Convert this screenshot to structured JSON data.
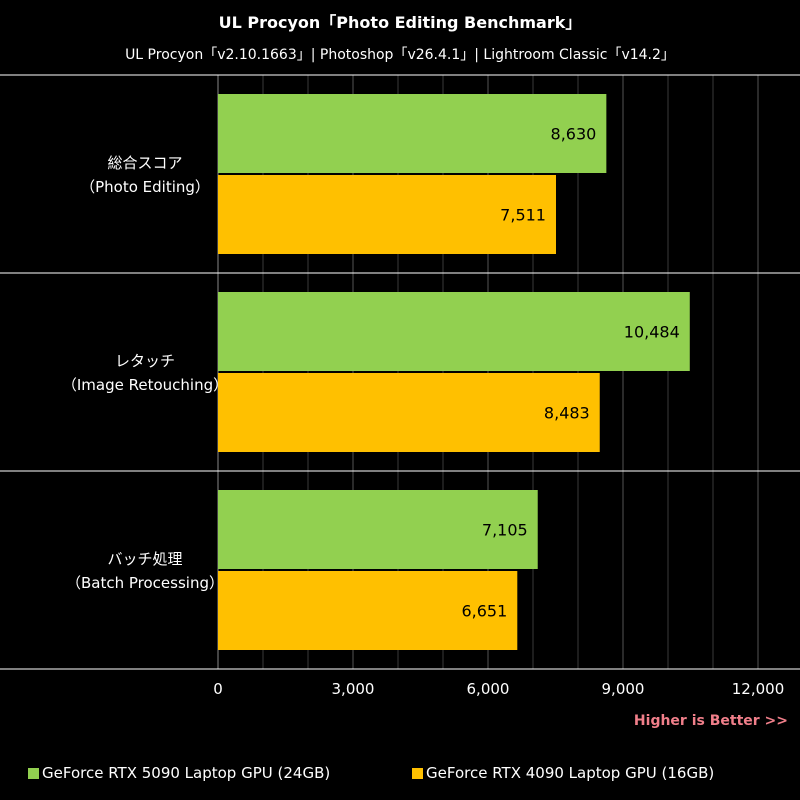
{
  "chart_data": {
    "type": "bar",
    "orientation": "horizontal",
    "title": "UL Procyon「Photo Editing Benchmark」",
    "subtitle": "UL Procyon「v2.10.1663」| Photoshop「v26.4.1」| Lightroom Classic「v14.2」",
    "categories": [
      [
        "総合スコア",
        "（Photo Editing）"
      ],
      [
        "レタッチ",
        "（Image Retouching）"
      ],
      [
        "バッチ処理",
        "（Batch Processing）"
      ]
    ],
    "series": [
      {
        "name": "GeForce RTX 5090 Laptop GPU (24GB)",
        "color": "#92d050",
        "values": [
          8630,
          10484,
          7105
        ],
        "labels": [
          "8,630",
          "10,484",
          "7,105"
        ]
      },
      {
        "name": "GeForce RTX 4090 Laptop GPU (16GB)",
        "color": "#ffc000",
        "values": [
          7511,
          8483,
          6651
        ],
        "labels": [
          "7,511",
          "8,483",
          "6,651"
        ]
      }
    ],
    "xlim": [
      0,
      12000
    ],
    "xticks": [
      0,
      3000,
      6000,
      9000,
      12000
    ],
    "xtick_labels": [
      "0",
      "3,000",
      "6,000",
      "9,000",
      "12,000"
    ],
    "grid": true,
    "legend_position": "bottom",
    "note": "Higher is Better >>"
  },
  "colors": {
    "background": "#000000",
    "panel": "#000000",
    "grid": "#3a3a3a",
    "separator": "#ffffff",
    "note": "#f07f8a"
  }
}
